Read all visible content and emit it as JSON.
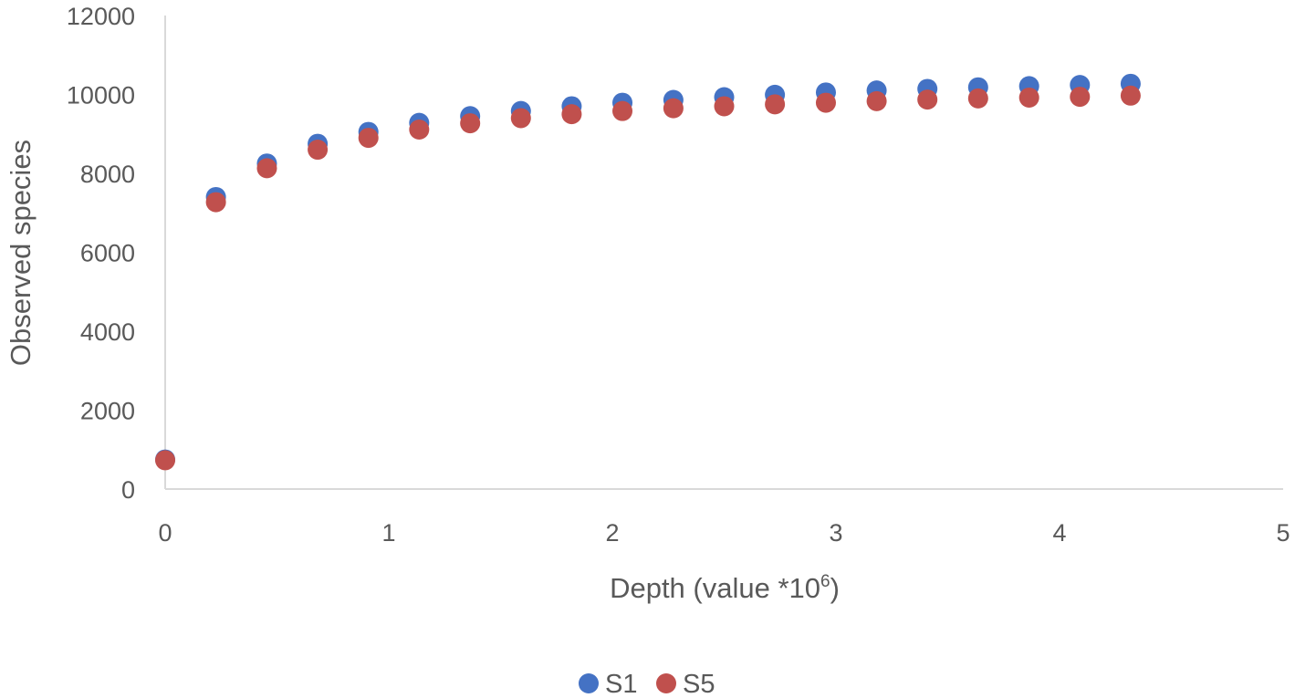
{
  "chart_data": {
    "type": "scatter",
    "title": "",
    "xlabel": "Depth (value *10",
    "xlabel_superscript": "6",
    "xlabel_suffix": ")",
    "ylabel": "Observed species",
    "xlim": [
      0,
      5
    ],
    "ylim": [
      0,
      12000
    ],
    "x_ticks": [
      "0",
      "1",
      "2",
      "3",
      "4",
      "5"
    ],
    "y_ticks": [
      "0",
      "2000",
      "4000",
      "6000",
      "8000",
      "10000",
      "12000"
    ],
    "grid": false,
    "legend_position": "bottom",
    "series": [
      {
        "name": "S1",
        "color": "#4472C4",
        "points": [
          [
            0,
            750
          ],
          [
            0.227,
            7400
          ],
          [
            0.455,
            8250
          ],
          [
            0.682,
            8750
          ],
          [
            0.909,
            9050
          ],
          [
            1.136,
            9280
          ],
          [
            1.364,
            9450
          ],
          [
            1.591,
            9580
          ],
          [
            1.818,
            9700
          ],
          [
            2.045,
            9790
          ],
          [
            2.273,
            9860
          ],
          [
            2.5,
            9930
          ],
          [
            2.727,
            9990
          ],
          [
            2.955,
            10050
          ],
          [
            3.182,
            10100
          ],
          [
            3.409,
            10140
          ],
          [
            3.636,
            10180
          ],
          [
            3.864,
            10210
          ],
          [
            4.091,
            10240
          ],
          [
            4.318,
            10270
          ]
        ]
      },
      {
        "name": "S5",
        "color": "#C0504D",
        "points": [
          [
            0,
            730
          ],
          [
            0.227,
            7270
          ],
          [
            0.455,
            8130
          ],
          [
            0.682,
            8600
          ],
          [
            0.909,
            8900
          ],
          [
            1.136,
            9110
          ],
          [
            1.364,
            9270
          ],
          [
            1.591,
            9400
          ],
          [
            1.818,
            9500
          ],
          [
            2.045,
            9580
          ],
          [
            2.273,
            9650
          ],
          [
            2.5,
            9700
          ],
          [
            2.727,
            9750
          ],
          [
            2.955,
            9790
          ],
          [
            3.182,
            9830
          ],
          [
            3.409,
            9870
          ],
          [
            3.636,
            9900
          ],
          [
            3.864,
            9920
          ],
          [
            4.091,
            9940
          ],
          [
            4.318,
            9970
          ]
        ]
      }
    ]
  }
}
